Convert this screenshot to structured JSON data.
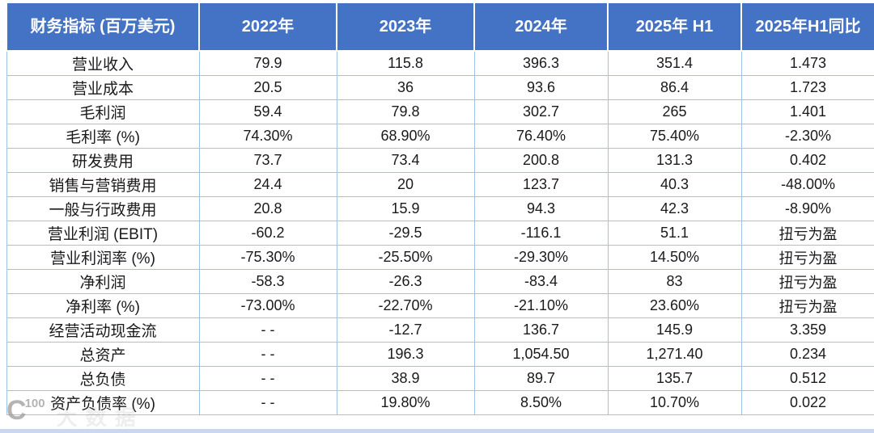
{
  "chart_data": {
    "type": "table",
    "title": "",
    "columns": [
      "财务指标 (百万美元)",
      "2022年",
      "2023年",
      "2024年",
      "2025年 H1",
      "2025年H1同比"
    ],
    "rows": [
      {
        "label": "营业收入",
        "values": [
          "79.9",
          "115.8",
          "396.3",
          "351.4",
          "1.473"
        ]
      },
      {
        "label": "营业成本",
        "values": [
          "20.5",
          "36",
          "93.6",
          "86.4",
          "1.723"
        ]
      },
      {
        "label": "毛利润",
        "values": [
          "59.4",
          "79.8",
          "302.7",
          "265",
          "1.401"
        ]
      },
      {
        "label": "毛利率 (%)",
        "values": [
          "74.30%",
          "68.90%",
          "76.40%",
          "75.40%",
          "-2.30%"
        ]
      },
      {
        "label": "研发费用",
        "values": [
          "73.7",
          "73.4",
          "200.8",
          "131.3",
          "0.402"
        ]
      },
      {
        "label": "销售与营销费用",
        "values": [
          "24.4",
          "20",
          "123.7",
          "40.3",
          "-48.00%"
        ]
      },
      {
        "label": "一般与行政费用",
        "values": [
          "20.8",
          "15.9",
          "94.3",
          "42.3",
          "-8.90%"
        ]
      },
      {
        "label": "营业利润 (EBIT)",
        "values": [
          "-60.2",
          "-29.5",
          "-116.1",
          "51.1",
          "扭亏为盈"
        ]
      },
      {
        "label": "营业利润率 (%)",
        "values": [
          "-75.30%",
          "-25.50%",
          "-29.30%",
          "14.50%",
          "扭亏为盈"
        ]
      },
      {
        "label": "净利润",
        "values": [
          "-58.3",
          "-26.3",
          "-83.4",
          "83",
          "扭亏为盈"
        ]
      },
      {
        "label": "净利率 (%)",
        "values": [
          "-73.00%",
          "-22.70%",
          "-21.10%",
          "23.60%",
          "扭亏为盈"
        ]
      },
      {
        "label": "经营活动现金流",
        "values": [
          "- -",
          "-12.7",
          "136.7",
          "145.9",
          "3.359"
        ]
      },
      {
        "label": "总资产",
        "values": [
          "- -",
          "196.3",
          "1,054.50",
          "1,271.40",
          "0.234"
        ]
      },
      {
        "label": "总负债",
        "values": [
          "- -",
          "38.9",
          "89.7",
          "135.7",
          "0.512"
        ]
      },
      {
        "label": "资产负债率 (%)",
        "values": [
          "- -",
          "19.80%",
          "8.50%",
          "10.70%",
          "0.022"
        ]
      }
    ],
    "layout": {
      "header_bg": "#4472C4",
      "header_text_color": "#FFFFFF",
      "grid_color": "#9FC3E4",
      "body_text_color": "#1A1A1A",
      "grid": "on"
    }
  },
  "watermark": {
    "logo": "C",
    "logo_sup": "100",
    "text": "大数据"
  }
}
